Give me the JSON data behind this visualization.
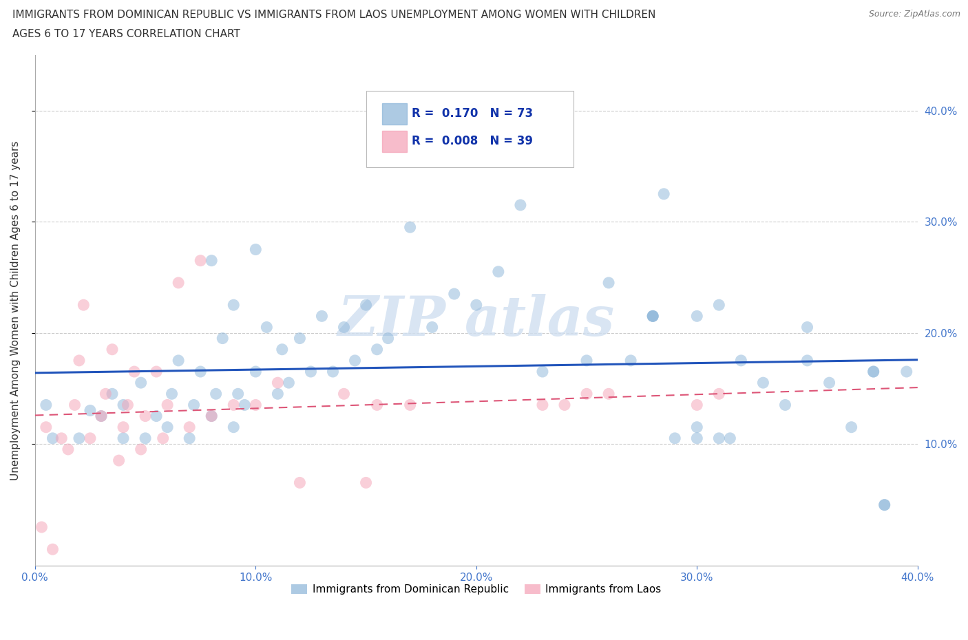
{
  "title_line1": "IMMIGRANTS FROM DOMINICAN REPUBLIC VS IMMIGRANTS FROM LAOS UNEMPLOYMENT AMONG WOMEN WITH CHILDREN",
  "title_line2": "AGES 6 TO 17 YEARS CORRELATION CHART",
  "source": "Source: ZipAtlas.com",
  "ylabel": "Unemployment Among Women with Children Ages 6 to 17 years",
  "xlim": [
    0.0,
    0.4
  ],
  "ylim": [
    -0.01,
    0.45
  ],
  "xticks": [
    0.0,
    0.1,
    0.2,
    0.3,
    0.4
  ],
  "yticks": [
    0.1,
    0.2,
    0.3,
    0.4
  ],
  "xtick_labels": [
    "0.0%",
    "10.0%",
    "20.0%",
    "30.0%",
    "40.0%"
  ],
  "ytick_labels": [
    "10.0%",
    "20.0%",
    "30.0%",
    "40.0%"
  ],
  "grid_color": "#cccccc",
  "background_color": "#ffffff",
  "color_blue": "#8ab4d8",
  "color_pink": "#f4a0b5",
  "tick_color": "#4477cc",
  "blue_R": "0.170",
  "blue_N": "73",
  "pink_R": "0.008",
  "pink_N": "39",
  "blue_line_color": "#2255bb",
  "pink_line_color": "#dd5577",
  "blue_scatter_x": [
    0.005,
    0.008,
    0.02,
    0.025,
    0.03,
    0.035,
    0.04,
    0.04,
    0.048,
    0.05,
    0.055,
    0.06,
    0.062,
    0.065,
    0.07,
    0.072,
    0.075,
    0.08,
    0.082,
    0.085,
    0.09,
    0.092,
    0.095,
    0.1,
    0.105,
    0.11,
    0.112,
    0.115,
    0.12,
    0.125,
    0.13,
    0.135,
    0.14,
    0.145,
    0.15,
    0.155,
    0.16,
    0.17,
    0.18,
    0.19,
    0.2,
    0.21,
    0.22,
    0.23,
    0.25,
    0.26,
    0.27,
    0.28,
    0.29,
    0.3,
    0.31,
    0.32,
    0.33,
    0.34,
    0.35,
    0.36,
    0.37,
    0.38,
    0.385,
    0.28,
    0.3,
    0.31,
    0.08,
    0.09,
    0.1,
    0.28,
    0.285,
    0.3,
    0.315,
    0.35,
    0.38,
    0.395,
    0.385
  ],
  "blue_scatter_y": [
    0.135,
    0.105,
    0.105,
    0.13,
    0.125,
    0.145,
    0.105,
    0.135,
    0.155,
    0.105,
    0.125,
    0.115,
    0.145,
    0.175,
    0.105,
    0.135,
    0.165,
    0.125,
    0.145,
    0.195,
    0.115,
    0.145,
    0.135,
    0.165,
    0.205,
    0.145,
    0.185,
    0.155,
    0.195,
    0.165,
    0.215,
    0.165,
    0.205,
    0.175,
    0.225,
    0.185,
    0.195,
    0.295,
    0.205,
    0.235,
    0.225,
    0.255,
    0.315,
    0.165,
    0.175,
    0.245,
    0.175,
    0.215,
    0.105,
    0.215,
    0.225,
    0.175,
    0.155,
    0.135,
    0.175,
    0.155,
    0.115,
    0.165,
    0.045,
    0.215,
    0.105,
    0.105,
    0.265,
    0.225,
    0.275,
    0.215,
    0.325,
    0.115,
    0.105,
    0.205,
    0.165,
    0.165,
    0.045
  ],
  "pink_scatter_x": [
    0.003,
    0.005,
    0.008,
    0.012,
    0.015,
    0.018,
    0.02,
    0.022,
    0.025,
    0.03,
    0.032,
    0.035,
    0.038,
    0.04,
    0.042,
    0.045,
    0.048,
    0.05,
    0.055,
    0.058,
    0.06,
    0.065,
    0.07,
    0.075,
    0.08,
    0.09,
    0.1,
    0.11,
    0.12,
    0.14,
    0.15,
    0.155,
    0.17,
    0.23,
    0.24,
    0.25,
    0.26,
    0.3,
    0.31
  ],
  "pink_scatter_y": [
    0.025,
    0.115,
    0.005,
    0.105,
    0.095,
    0.135,
    0.175,
    0.225,
    0.105,
    0.125,
    0.145,
    0.185,
    0.085,
    0.115,
    0.135,
    0.165,
    0.095,
    0.125,
    0.165,
    0.105,
    0.135,
    0.245,
    0.115,
    0.265,
    0.125,
    0.135,
    0.135,
    0.155,
    0.065,
    0.145,
    0.065,
    0.135,
    0.135,
    0.135,
    0.135,
    0.145,
    0.145,
    0.135,
    0.145
  ],
  "watermark": "ZIP atlas",
  "legend_label_blue": "Immigrants from Dominican Republic",
  "legend_label_pink": "Immigrants from Laos"
}
